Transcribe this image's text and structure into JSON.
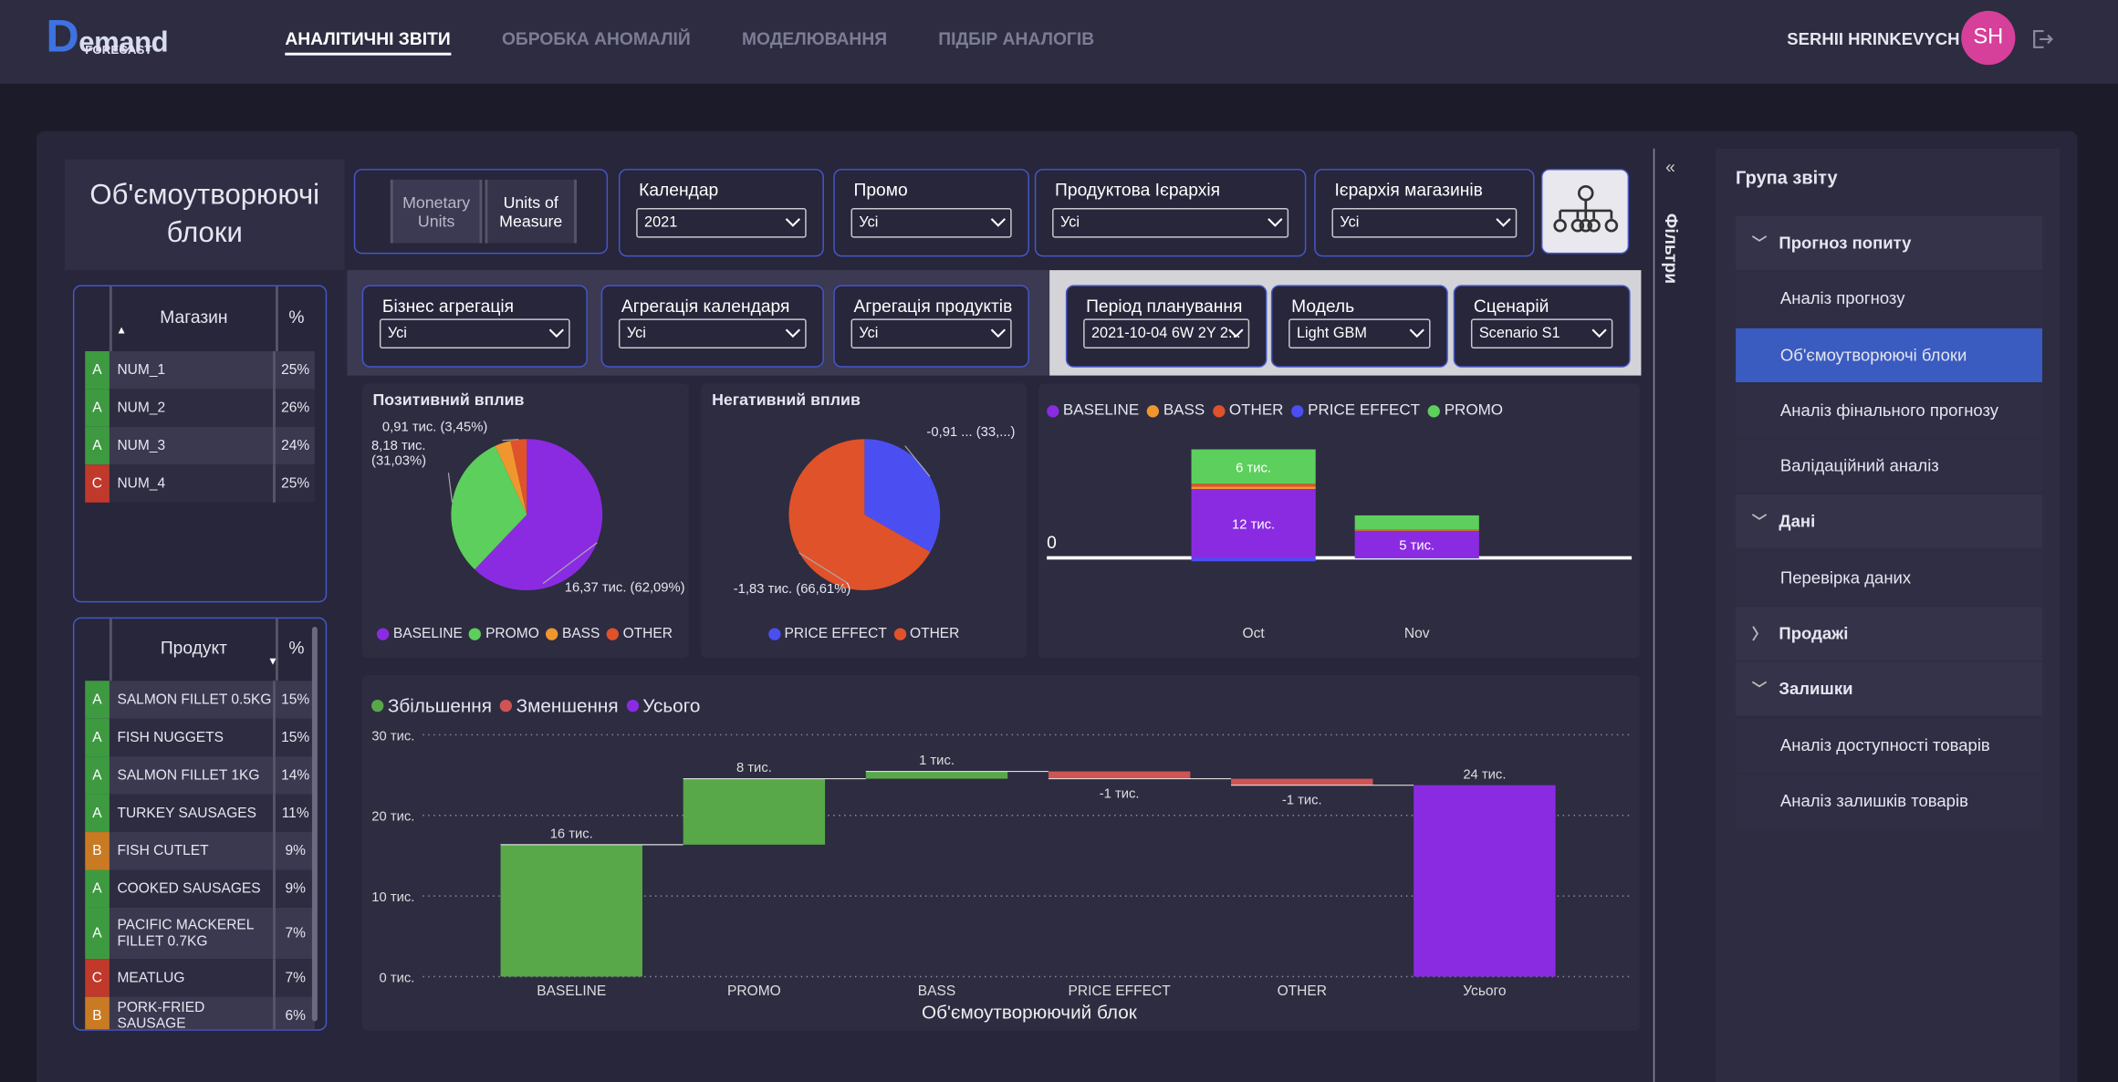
{
  "header": {
    "logo": "Demand",
    "logo_sub": "FORECAST",
    "nav": [
      "АНАЛІТИЧНІ ЗВІТИ",
      "ОБРОБКА АНОМАЛІЙ",
      "МОДЕЛЮВАННЯ",
      "ПІДБІР АНАЛОГІВ"
    ],
    "user": "SERHII HRINKEVYCH",
    "avatar": "SH"
  },
  "report": {
    "title": "Об'ємоутворюючі блоки",
    "units": [
      "Monetary Units",
      "Units of Measure"
    ]
  },
  "filters": [
    {
      "label": "Календар",
      "value": "2021"
    },
    {
      "label": "Промо",
      "value": "Усі"
    },
    {
      "label": "Продуктова Ієрархія",
      "value": "Усі"
    },
    {
      "label": "Ієрархія магазинів",
      "value": "Усі"
    },
    {
      "label": "Бізнес агрегація",
      "value": "Усі"
    },
    {
      "label": "Агрегація календаря",
      "value": "Усі"
    },
    {
      "label": "Агрегація продуктів",
      "value": "Усі"
    },
    {
      "label": "Період планування",
      "value": "2021-10-04 6W 2Y 2..."
    },
    {
      "label": "Модель",
      "value": "Light GBM"
    },
    {
      "label": "Сценарій",
      "value": "Scenario S1"
    }
  ],
  "stores": {
    "headers": [
      "Магазин",
      "%"
    ],
    "rows": [
      [
        "A",
        "NUM_1",
        "25%"
      ],
      [
        "A",
        "NUM_2",
        "26%"
      ],
      [
        "A",
        "NUM_3",
        "24%"
      ],
      [
        "C",
        "NUM_4",
        "25%"
      ]
    ]
  },
  "products": {
    "headers": [
      "Продукт",
      "%"
    ],
    "rows": [
      [
        "A",
        "SALMON FILLET 0.5KG",
        "15%"
      ],
      [
        "A",
        "FISH NUGGETS",
        "15%"
      ],
      [
        "A",
        "SALMON FILLET 1KG",
        "14%"
      ],
      [
        "A",
        "TURKEY SAUSAGES",
        "11%"
      ],
      [
        "B",
        "FISH CUTLET",
        "9%"
      ],
      [
        "A",
        "COOKED SAUSAGES",
        "9%"
      ],
      [
        "A",
        "PACIFIC MACKEREL FILLET 0.7KG",
        "7%"
      ],
      [
        "C",
        "MEATLUG",
        "7%"
      ],
      [
        "B",
        "PORK-FRIED SAUSAGE",
        "6%"
      ]
    ]
  },
  "charts": [
    {
      "type": "pie",
      "title": "Позитивний вплив",
      "categories": [
        "BASELINE",
        "PROMO",
        "BASS",
        "OTHER"
      ],
      "values": [
        16.37,
        8.18,
        0.9,
        0.91
      ],
      "value_labels": [
        "16,37 тис. (62,09%)",
        "8,18 тис. (31,03%)",
        null,
        "0,91 тис. (3,45%)"
      ],
      "colors": [
        "#8a2be2",
        "#5ccf5c",
        "#f0962e",
        "#e0522a"
      ]
    },
    {
      "type": "pie",
      "title": "Негативний вплив",
      "categories": [
        "PRICE EFFECT",
        "OTHER"
      ],
      "values": [
        -0.91,
        -1.83
      ],
      "value_labels": [
        "-0,91 ... (33,...)",
        "-1,83 тис. (66,61%)"
      ],
      "colors": [
        "#4b4ff2",
        "#e0522a"
      ]
    },
    {
      "type": "stacked_bar",
      "categories": [
        "Oct",
        "Nov"
      ],
      "series": [
        {
          "name": "BASELINE",
          "color": "#8a2be2",
          "values": [
            12,
            4.7
          ],
          "value_labels": [
            "12 тис.",
            "5 тис."
          ]
        },
        {
          "name": "BASS",
          "color": "#f0962e",
          "values": [
            0.4,
            0.1
          ],
          "value_labels": [
            null,
            null
          ]
        },
        {
          "name": "OTHER",
          "color": "#e0522a",
          "values": [
            0.5,
            0.1
          ],
          "value_labels": [
            null,
            null
          ]
        },
        {
          "name": "PRICE EFFECT",
          "color": "#4b4ff2",
          "values": [
            -0.6,
            -0.1
          ],
          "value_labels": [
            null,
            null
          ]
        },
        {
          "name": "PROMO",
          "color": "#5ccf5c",
          "values": [
            6,
            2.5
          ],
          "value_labels": [
            "6 тис.",
            null
          ]
        }
      ],
      "ylim": [
        -7,
        25
      ],
      "yticks": [
        0
      ]
    },
    {
      "type": "waterfall",
      "x_label": "Об'ємоутворюючий блок",
      "categories": [
        "BASELINE",
        "PROMO",
        "BASS",
        "PRICE EFFECT",
        "OTHER",
        "Усього"
      ],
      "values": [
        16.37,
        8.18,
        0.91,
        -0.91,
        -0.8,
        23.75
      ],
      "value_labels": [
        "16 тис.",
        "8 тис.",
        "1 тис.",
        "-1 тис.",
        "-1 тис.",
        "24 тис."
      ],
      "series": [
        {
          "name": "Збільшення",
          "color": "#58a84a"
        },
        {
          "name": "Зменшення",
          "color": "#d05454"
        },
        {
          "name": "Усього",
          "color": "#8a2be2"
        }
      ],
      "ylim": [
        0,
        30
      ],
      "yticks": [
        {
          "value": 0,
          "label": "0 тис."
        },
        {
          "value": 10,
          "label": "10 тис."
        },
        {
          "value": 20,
          "label": "20 тис."
        },
        {
          "value": 30,
          "label": "30 тис."
        }
      ],
      "grid": true
    }
  ],
  "filters_tab": "Фільтри",
  "sidebar": {
    "title": "Група звіту",
    "groups": [
      {
        "name": "Прогноз попиту",
        "items": [
          "Аналіз прогнозу",
          "Об'ємоутворюючі блоки",
          "Аналіз фінального прогнозу",
          "Валідаційний аналіз"
        ]
      },
      {
        "name": "Дані",
        "items": [
          "Перевірка даних"
        ]
      },
      {
        "name": "Продажі",
        "items": []
      },
      {
        "name": "Залишки",
        "items": [
          "Аналіз доступності товарів",
          "Аналіз залишків товарів"
        ]
      }
    ]
  }
}
